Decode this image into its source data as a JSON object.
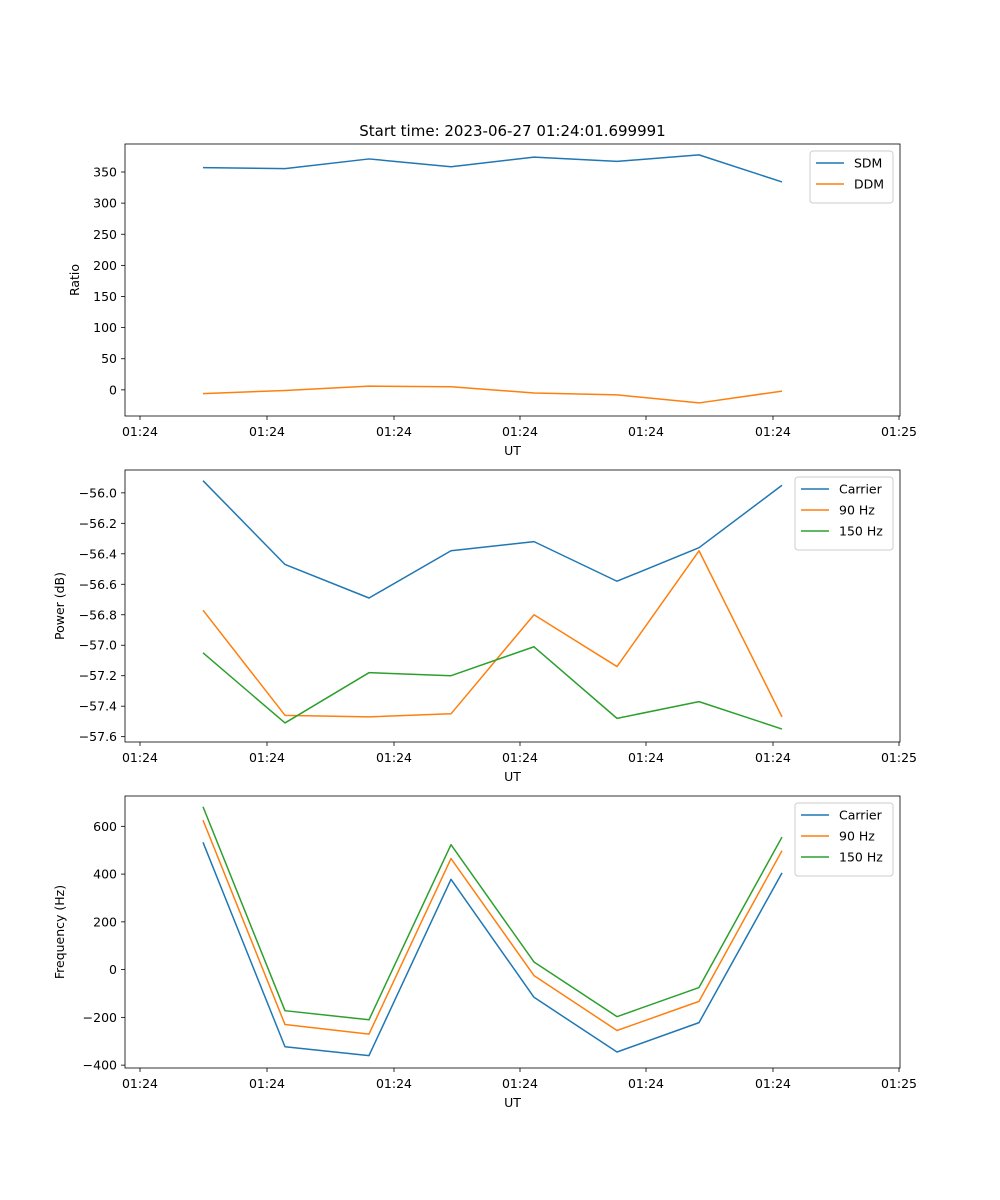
{
  "chart_data": [
    {
      "type": "line",
      "title": "Start time: 2023-06-27 01:24:01.699991",
      "xlabel": "UT",
      "ylabel": "Ratio",
      "xticks": [
        "01:24",
        "01:24",
        "01:24",
        "01:24",
        "01:24",
        "01:24",
        "01:25"
      ],
      "ylim": [
        -42,
        395
      ],
      "yticks": [
        0,
        50,
        100,
        150,
        200,
        250,
        300,
        350
      ],
      "ytick_labels": [
        "0",
        "50",
        "100",
        "150",
        "200",
        "250",
        "300",
        "350"
      ],
      "legend": "top-right",
      "grid": false,
      "series": [
        {
          "name": "SDM",
          "color": "#1f77b4",
          "values": [
            357,
            355.5,
            371,
            358.5,
            374,
            367,
            377.5,
            334
          ]
        },
        {
          "name": "DDM",
          "color": "#ff7f0e",
          "values": [
            -6,
            -1,
            6,
            5,
            -5,
            -8,
            -21,
            -2
          ]
        }
      ]
    },
    {
      "type": "line",
      "title": "",
      "xlabel": "UT",
      "ylabel": "Power (dB)",
      "xticks": [
        "01:24",
        "01:24",
        "01:24",
        "01:24",
        "01:24",
        "01:24",
        "01:25"
      ],
      "ylim": [
        -57.635,
        -55.85
      ],
      "yticks": [
        -57.6,
        -57.4,
        -57.2,
        -57.0,
        -56.8,
        -56.6,
        -56.4,
        -56.2,
        -56.0
      ],
      "ytick_labels": [
        "−57.6",
        "−57.4",
        "−57.2",
        "−57.0",
        "−56.8",
        "−56.6",
        "−56.4",
        "−56.2",
        "−56.0"
      ],
      "legend": "top-right",
      "grid": false,
      "series": [
        {
          "name": "Carrier",
          "color": "#1f77b4",
          "values": [
            -55.92,
            -56.47,
            -56.69,
            -56.38,
            -56.32,
            -56.58,
            -56.36,
            -55.95
          ]
        },
        {
          "name": "90 Hz",
          "color": "#ff7f0e",
          "values": [
            -56.77,
            -57.46,
            -57.47,
            -57.45,
            -56.8,
            -57.14,
            -56.38,
            -57.47
          ]
        },
        {
          "name": "150 Hz",
          "color": "#2ca02c",
          "values": [
            -57.05,
            -57.51,
            -57.18,
            -57.2,
            -57.01,
            -57.48,
            -57.37,
            -57.55
          ]
        }
      ]
    },
    {
      "type": "line",
      "title": "",
      "xlabel": "UT",
      "ylabel": "Frequency (Hz)",
      "xticks": [
        "01:24",
        "01:24",
        "01:24",
        "01:24",
        "01:24",
        "01:24",
        "01:25"
      ],
      "ylim": [
        -412,
        727
      ],
      "yticks": [
        -400,
        -200,
        0,
        200,
        400,
        600
      ],
      "ytick_labels": [
        "−400",
        "−200",
        "0",
        "200",
        "400",
        "600"
      ],
      "legend": "top-right",
      "grid": false,
      "series": [
        {
          "name": "Carrier",
          "color": "#1f77b4",
          "values": [
            533,
            -323,
            -360,
            378,
            -116,
            -345,
            -222,
            405
          ]
        },
        {
          "name": "90 Hz",
          "color": "#ff7f0e",
          "values": [
            626,
            -230,
            -270,
            465,
            -25,
            -255,
            -133,
            498
          ]
        },
        {
          "name": "150 Hz",
          "color": "#2ca02c",
          "values": [
            682,
            -172,
            -210,
            523,
            32,
            -197,
            -75,
            555
          ]
        }
      ]
    }
  ]
}
